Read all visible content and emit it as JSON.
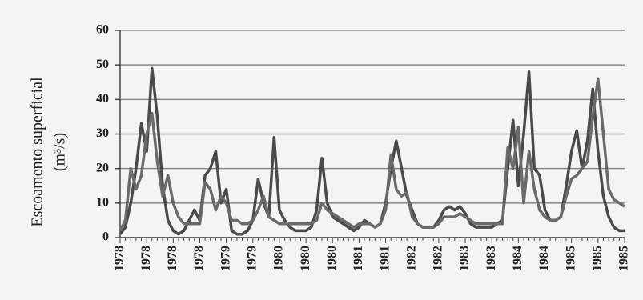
{
  "chart_data": {
    "type": "line",
    "y_label": [
      "Escoamento superficial",
      "(m³/s)"
    ],
    "categories": [
      "1978",
      null,
      null,
      null,
      null,
      "1978",
      null,
      null,
      null,
      null,
      "1978",
      null,
      null,
      null,
      null,
      "1978",
      null,
      null,
      null,
      null,
      "1979",
      null,
      null,
      null,
      null,
      "1979",
      null,
      null,
      null,
      null,
      "1980",
      null,
      null,
      null,
      null,
      "1980",
      null,
      null,
      null,
      null,
      "1980",
      null,
      null,
      null,
      null,
      "1981",
      null,
      null,
      null,
      null,
      "1981",
      null,
      null,
      null,
      null,
      "1982",
      null,
      null,
      null,
      null,
      "1982",
      null,
      null,
      null,
      null,
      "1983",
      null,
      null,
      null,
      null,
      "1983",
      null,
      null,
      null,
      null,
      "1984",
      null,
      null,
      null,
      null,
      "1984",
      null,
      null,
      null,
      null,
      "1985",
      null,
      null,
      null,
      null,
      "1985",
      null,
      null,
      null,
      null,
      "1985"
    ],
    "series": [
      {
        "color": "#4a4a4a",
        "values": [
          1,
          3,
          10,
          20,
          33,
          25,
          49,
          35,
          15,
          5,
          2,
          1,
          2,
          5,
          8,
          5,
          18,
          20,
          25,
          10,
          14,
          2,
          1,
          1,
          2,
          5,
          17,
          10,
          6,
          29,
          8,
          5,
          3,
          2,
          2,
          2,
          3,
          8,
          23,
          10,
          6,
          5,
          4,
          3,
          2,
          3,
          5,
          4,
          3,
          4,
          10,
          20,
          28,
          20,
          12,
          8,
          4,
          3,
          3,
          3,
          5,
          8,
          9,
          8,
          9,
          7,
          4,
          3,
          3,
          3,
          3,
          4,
          5,
          20,
          34,
          15,
          30,
          48,
          20,
          18,
          8,
          5,
          5,
          6,
          15,
          25,
          31,
          20,
          28,
          43,
          25,
          12,
          6,
          3,
          2,
          2
        ]
      },
      {
        "color": "#6a6a6a",
        "values": [
          2,
          5,
          20,
          14,
          18,
          30,
          36,
          22,
          12,
          18,
          10,
          6,
          4,
          4,
          4,
          4,
          16,
          14,
          8,
          12,
          10,
          5,
          5,
          4,
          4,
          5,
          8,
          12,
          6,
          5,
          4,
          4,
          4,
          4,
          4,
          4,
          4,
          5,
          10,
          8,
          7,
          6,
          5,
          4,
          3,
          4,
          4,
          4,
          3,
          4,
          8,
          24,
          14,
          12,
          13,
          6,
          4,
          3,
          3,
          3,
          4,
          6,
          6,
          6,
          7,
          6,
          5,
          4,
          4,
          4,
          4,
          4,
          4,
          26,
          20,
          32,
          10,
          25,
          14,
          8,
          6,
          5,
          5,
          6,
          12,
          17,
          18,
          20,
          22,
          35,
          46,
          30,
          14,
          11,
          10,
          9
        ]
      }
    ],
    "ylim": [
      0,
      60
    ],
    "yticks": [
      0,
      10,
      20,
      30,
      40,
      50,
      60
    ],
    "grid": true
  }
}
